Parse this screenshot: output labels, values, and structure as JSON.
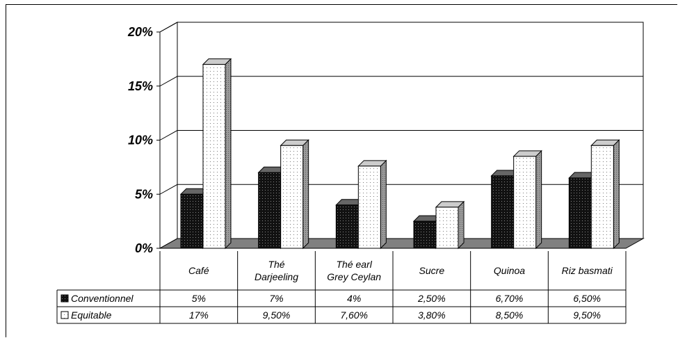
{
  "chart_data": {
    "type": "bar",
    "title": "",
    "xlabel": "",
    "ylabel": "",
    "ylim": [
      0,
      20
    ],
    "y_tick_labels": [
      "0%",
      "5%",
      "10%",
      "15%",
      "20%"
    ],
    "grid": true,
    "categories": [
      [
        "Café"
      ],
      [
        "Thé",
        "Darjeeling"
      ],
      [
        "Thé earl",
        "Grey Ceylan"
      ],
      [
        "Sucre"
      ],
      [
        "Quinoa"
      ],
      [
        "Riz basmati"
      ]
    ],
    "series": [
      {
        "name": "Conventionnel",
        "values": [
          5,
          7,
          4,
          2.5,
          6.7,
          6.5
        ],
        "labels": [
          "5%",
          "7%",
          "4%",
          "2,50%",
          "6,70%",
          "6,50%"
        ],
        "color": "#1a1a1a",
        "pattern": "dark-dotted"
      },
      {
        "name": "Equitable",
        "values": [
          17,
          9.5,
          7.6,
          3.8,
          8.5,
          9.5
        ],
        "labels": [
          "17%",
          "9,50%",
          "7,60%",
          "3,80%",
          "8,50%",
          "9,50%"
        ],
        "color": "#ffffff",
        "pattern": "light-dotted"
      }
    ],
    "legend_placement": "data-table-rows"
  }
}
